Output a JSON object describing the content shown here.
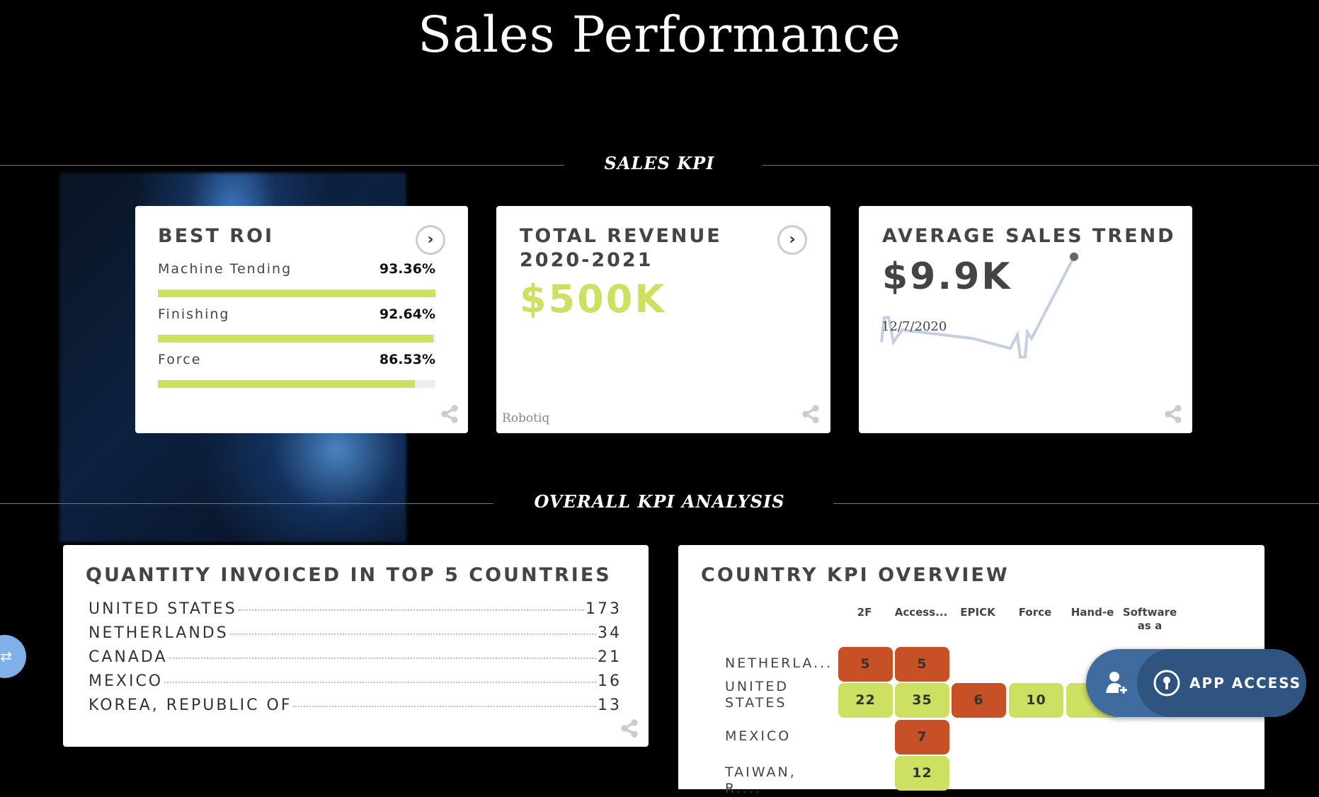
{
  "page_title": "Sales Performance",
  "sections": {
    "sales_kpi": "SALES KPI",
    "overall": "OVERALL KPI ANALYSIS"
  },
  "best_roi": {
    "title": "BEST ROI",
    "items": [
      {
        "label": "Machine Tending",
        "value": "93.36%",
        "percent": 93.36
      },
      {
        "label": "Finishing",
        "value": "92.64%",
        "percent": 92.64
      },
      {
        "label": "Force",
        "value": "86.53%",
        "percent": 86.53
      }
    ]
  },
  "total_revenue": {
    "title_line1": "TOTAL REVENUE",
    "title_line2": "2020-2021",
    "value": "$500K",
    "source": "Robotiq",
    "accent": "#cde062"
  },
  "avg_sales": {
    "title": "AVERAGE SALES TREND",
    "value": "$9.9K",
    "date": "12/7/2020",
    "trend_values": [
      3,
      5,
      5,
      3,
      4,
      3.3,
      2.5,
      3.6,
      1.8,
      1.8,
      3.8,
      3.3,
      9.9
    ]
  },
  "quantity": {
    "title": "QUANTITY INVOICED IN TOP 5 COUNTRIES",
    "rows": [
      {
        "country": "UNITED STATES",
        "value": "173"
      },
      {
        "country": "NETHERLANDS",
        "value": "34"
      },
      {
        "country": "CANADA",
        "value": "21"
      },
      {
        "country": "MEXICO",
        "value": "16"
      },
      {
        "country": "KOREA, REPUBLIC OF",
        "value": "13"
      }
    ]
  },
  "country_kpi": {
    "title": "COUNTRY KPI OVERVIEW",
    "columns": [
      "2F",
      "Access...",
      "EPICK",
      "Force",
      "Hand-e",
      "Software as a"
    ],
    "rows": [
      "NETHERLA...",
      "UNITED STATES",
      "MEXICO",
      "TAIWAN, R...."
    ],
    "cells": [
      {
        "row": 0,
        "col": 0,
        "value": "5",
        "status": "bad"
      },
      {
        "row": 0,
        "col": 1,
        "value": "5",
        "status": "bad"
      },
      {
        "row": 1,
        "col": 0,
        "value": "22",
        "status": "good"
      },
      {
        "row": 1,
        "col": 1,
        "value": "35",
        "status": "good"
      },
      {
        "row": 1,
        "col": 2,
        "value": "6",
        "status": "bad"
      },
      {
        "row": 1,
        "col": 3,
        "value": "10",
        "status": "good"
      },
      {
        "row": 1,
        "col": 4,
        "value": "",
        "status": "good"
      },
      {
        "row": 2,
        "col": 1,
        "value": "7",
        "status": "bad"
      },
      {
        "row": 3,
        "col": 1,
        "value": "12",
        "status": "good"
      }
    ],
    "colors": {
      "good": "#cde062",
      "bad": "#c75027"
    }
  },
  "app_access": {
    "label": "APP ACCESS"
  }
}
